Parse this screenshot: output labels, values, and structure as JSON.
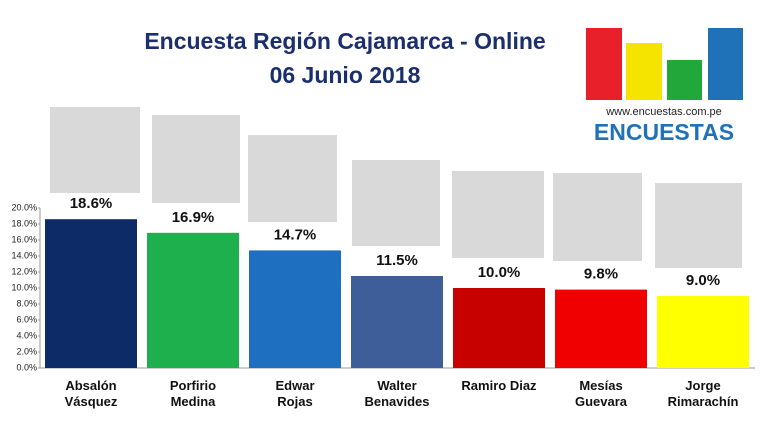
{
  "chart_data": {
    "type": "bar",
    "title": "Encuesta Región Cajamarca - Online",
    "subtitle": "06 Junio 2018",
    "source": "www.encuestas.com.pe",
    "brand": "ENCUESTAS",
    "categories": [
      "Absalón\nVásquez",
      "Porfirio\nMedina",
      "Edwar\nRojas",
      "Walter\nBenavides",
      "Ramiro Diaz",
      "Mesías\nGuevara",
      "Jorge\nRimarachín"
    ],
    "values": [
      18.6,
      16.9,
      14.7,
      11.5,
      10.0,
      9.8,
      9.0
    ],
    "value_labels": [
      "18.6%",
      "16.9%",
      "14.7%",
      "11.5%",
      "10.0%",
      "9.8%",
      "9.0%"
    ],
    "colors": [
      "#0d2b66",
      "#1db04c",
      "#1f6fc0",
      "#3d5e98",
      "#c70000",
      "#f00000",
      "#ffff00"
    ],
    "ylim": [
      0,
      20
    ],
    "yticks": [
      {
        "value": 0,
        "label": "0.0%"
      },
      {
        "value": 2,
        "label": "2.0%"
      },
      {
        "value": 4,
        "label": "4.0%"
      },
      {
        "value": 6,
        "label": "6.0%"
      },
      {
        "value": 8,
        "label": "8.0%"
      },
      {
        "value": 10,
        "label": "10.0%"
      },
      {
        "value": 12,
        "label": "12.0%"
      },
      {
        "value": 14,
        "label": "14.0%"
      },
      {
        "value": 16,
        "label": "16.0%"
      },
      {
        "value": 18,
        "label": "18.0%"
      },
      {
        "value": 20,
        "label": "20.0%"
      }
    ],
    "grid": false
  }
}
